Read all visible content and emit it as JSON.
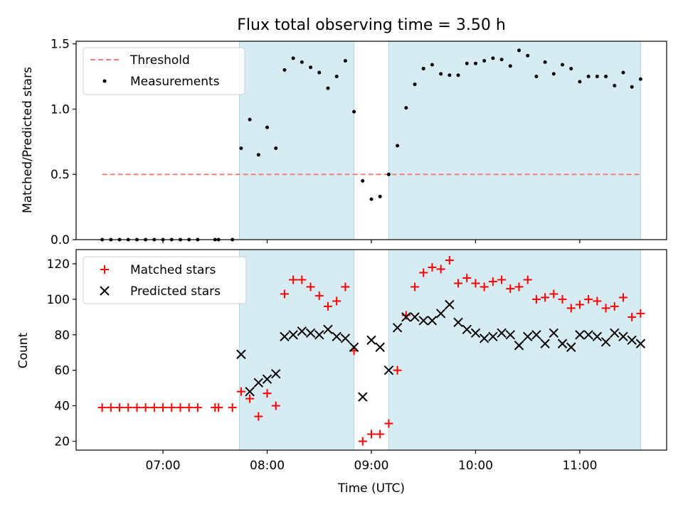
{
  "figure": {
    "title": "Flux total observing time = 3.50 h"
  },
  "chart_data": [
    {
      "type": "scatter",
      "ylabel": "Matched/Predicted stars",
      "ylim": [
        0,
        1.52
      ],
      "yticks": [
        0.0,
        0.5,
        1.0,
        1.5
      ],
      "ytick_labels": [
        "0.0",
        "0.5",
        "1.0",
        "1.5"
      ],
      "threshold": {
        "name": "Threshold",
        "value": 0.5,
        "x_start": "06:25",
        "x_end": "11:35",
        "color": "#f08080"
      },
      "series": [
        {
          "name": "Measurements",
          "color": "#000000",
          "points": [
            [
              "06:25",
              0
            ],
            [
              "06:30",
              0
            ],
            [
              "06:35",
              0
            ],
            [
              "06:40",
              0
            ],
            [
              "06:45",
              0
            ],
            [
              "06:50",
              0
            ],
            [
              "06:55",
              0
            ],
            [
              "07:00",
              0
            ],
            [
              "07:05",
              0
            ],
            [
              "07:10",
              0
            ],
            [
              "07:15",
              0
            ],
            [
              "07:20",
              0
            ],
            [
              "07:30",
              0
            ],
            [
              "07:32",
              0
            ],
            [
              "07:40",
              0
            ],
            [
              "07:45",
              0.7
            ],
            [
              "07:50",
              0.92
            ],
            [
              "07:55",
              0.65
            ],
            [
              "08:00",
              0.86
            ],
            [
              "08:05",
              0.7
            ],
            [
              "08:10",
              1.3
            ],
            [
              "08:15",
              1.39
            ],
            [
              "08:20",
              1.36
            ],
            [
              "08:25",
              1.32
            ],
            [
              "08:30",
              1.28
            ],
            [
              "08:35",
              1.16
            ],
            [
              "08:40",
              1.25
            ],
            [
              "08:45",
              1.37
            ],
            [
              "08:50",
              0.98
            ],
            [
              "08:55",
              0.45
            ],
            [
              "09:00",
              0.31
            ],
            [
              "09:05",
              0.33
            ],
            [
              "09:10",
              0.5
            ],
            [
              "09:15",
              0.72
            ],
            [
              "09:20",
              1.01
            ],
            [
              "09:25",
              1.19
            ],
            [
              "09:30",
              1.31
            ],
            [
              "09:35",
              1.34
            ],
            [
              "09:40",
              1.27
            ],
            [
              "09:45",
              1.26
            ],
            [
              "09:50",
              1.26
            ],
            [
              "09:55",
              1.35
            ],
            [
              "10:00",
              1.35
            ],
            [
              "10:05",
              1.37
            ],
            [
              "10:10",
              1.39
            ],
            [
              "10:15",
              1.38
            ],
            [
              "10:20",
              1.33
            ],
            [
              "10:25",
              1.45
            ],
            [
              "10:30",
              1.41
            ],
            [
              "10:35",
              1.25
            ],
            [
              "10:40",
              1.36
            ],
            [
              "10:45",
              1.27
            ],
            [
              "10:50",
              1.34
            ],
            [
              "10:55",
              1.31
            ],
            [
              "11:00",
              1.21
            ],
            [
              "11:05",
              1.25
            ],
            [
              "11:10",
              1.25
            ],
            [
              "11:15",
              1.25
            ],
            [
              "11:20",
              1.18
            ],
            [
              "11:25",
              1.28
            ],
            [
              "11:30",
              1.17
            ],
            [
              "11:35",
              1.23
            ]
          ]
        }
      ]
    },
    {
      "type": "scatter",
      "xlabel": "Time (UTC)",
      "ylabel": "Count",
      "ylim": [
        15,
        128
      ],
      "yticks": [
        20,
        40,
        60,
        80,
        100,
        120
      ],
      "ytick_labels": [
        "20",
        "40",
        "60",
        "80",
        "100",
        "120"
      ],
      "series": [
        {
          "name": "Matched stars",
          "marker": "plus",
          "color": "#ff0000",
          "points": [
            [
              "06:25",
              39
            ],
            [
              "06:30",
              39
            ],
            [
              "06:35",
              39
            ],
            [
              "06:40",
              39
            ],
            [
              "06:45",
              39
            ],
            [
              "06:50",
              39
            ],
            [
              "06:55",
              39
            ],
            [
              "07:00",
              39
            ],
            [
              "07:05",
              39
            ],
            [
              "07:10",
              39
            ],
            [
              "07:15",
              39
            ],
            [
              "07:20",
              39
            ],
            [
              "07:30",
              39
            ],
            [
              "07:32",
              39
            ],
            [
              "07:40",
              39
            ],
            [
              "07:45",
              48
            ],
            [
              "07:50",
              44
            ],
            [
              "07:55",
              34
            ],
            [
              "08:00",
              47
            ],
            [
              "08:05",
              40
            ],
            [
              "08:10",
              103
            ],
            [
              "08:15",
              111
            ],
            [
              "08:20",
              111
            ],
            [
              "08:25",
              107
            ],
            [
              "08:30",
              102
            ],
            [
              "08:35",
              96
            ],
            [
              "08:40",
              99
            ],
            [
              "08:45",
              107
            ],
            [
              "08:50",
              71
            ],
            [
              "08:55",
              20
            ],
            [
              "09:00",
              24
            ],
            [
              "09:05",
              24
            ],
            [
              "09:10",
              30
            ],
            [
              "09:15",
              60
            ],
            [
              "09:20",
              91
            ],
            [
              "09:25",
              107
            ],
            [
              "09:30",
              115
            ],
            [
              "09:35",
              118
            ],
            [
              "09:40",
              117
            ],
            [
              "09:45",
              122
            ],
            [
              "09:50",
              109
            ],
            [
              "09:55",
              112
            ],
            [
              "10:00",
              109
            ],
            [
              "10:05",
              107
            ],
            [
              "10:10",
              110
            ],
            [
              "10:15",
              111
            ],
            [
              "10:20",
              106
            ],
            [
              "10:25",
              107
            ],
            [
              "10:30",
              111
            ],
            [
              "10:35",
              100
            ],
            [
              "10:40",
              101
            ],
            [
              "10:45",
              103
            ],
            [
              "10:50",
              100
            ],
            [
              "10:55",
              95
            ],
            [
              "11:00",
              97
            ],
            [
              "11:05",
              100
            ],
            [
              "11:10",
              99
            ],
            [
              "11:15",
              95
            ],
            [
              "11:20",
              96
            ],
            [
              "11:25",
              101
            ],
            [
              "11:30",
              90
            ],
            [
              "11:35",
              92
            ]
          ]
        },
        {
          "name": "Predicted stars",
          "marker": "x",
          "color": "#000000",
          "points": [
            [
              "07:45",
              69
            ],
            [
              "07:50",
              48
            ],
            [
              "07:55",
              53
            ],
            [
              "08:00",
              55
            ],
            [
              "08:05",
              58
            ],
            [
              "08:10",
              79
            ],
            [
              "08:15",
              80
            ],
            [
              "08:20",
              82
            ],
            [
              "08:25",
              81
            ],
            [
              "08:30",
              80
            ],
            [
              "08:35",
              83
            ],
            [
              "08:40",
              79
            ],
            [
              "08:45",
              78
            ],
            [
              "08:50",
              73
            ],
            [
              "08:55",
              45
            ],
            [
              "09:00",
              77
            ],
            [
              "09:05",
              73
            ],
            [
              "09:10",
              60
            ],
            [
              "09:15",
              84
            ],
            [
              "09:20",
              90
            ],
            [
              "09:25",
              90
            ],
            [
              "09:30",
              88
            ],
            [
              "09:35",
              88
            ],
            [
              "09:40",
              92
            ],
            [
              "09:45",
              97
            ],
            [
              "09:50",
              87
            ],
            [
              "09:55",
              83
            ],
            [
              "10:00",
              81
            ],
            [
              "10:05",
              78
            ],
            [
              "10:10",
              79
            ],
            [
              "10:15",
              81
            ],
            [
              "10:20",
              80
            ],
            [
              "10:25",
              74
            ],
            [
              "10:30",
              79
            ],
            [
              "10:35",
              80
            ],
            [
              "10:40",
              75
            ],
            [
              "10:45",
              81
            ],
            [
              "10:50",
              75
            ],
            [
              "10:55",
              73
            ],
            [
              "11:00",
              80
            ],
            [
              "11:05",
              80
            ],
            [
              "11:10",
              79
            ],
            [
              "11:15",
              76
            ],
            [
              "11:20",
              81
            ],
            [
              "11:25",
              79
            ],
            [
              "11:30",
              77
            ],
            [
              "11:35",
              75
            ]
          ]
        }
      ]
    }
  ],
  "shared_x": {
    "range": [
      "06:10",
      "11:50"
    ],
    "ticks": [
      "07:00",
      "08:00",
      "09:00",
      "10:00",
      "11:00"
    ],
    "tick_labels": [
      "07:00",
      "08:00",
      "09:00",
      "10:00",
      "11:00"
    ]
  },
  "observing_windows": {
    "color": "#add8e6",
    "windows": [
      [
        "07:44",
        "08:50"
      ],
      [
        "09:10",
        "11:35"
      ]
    ]
  }
}
